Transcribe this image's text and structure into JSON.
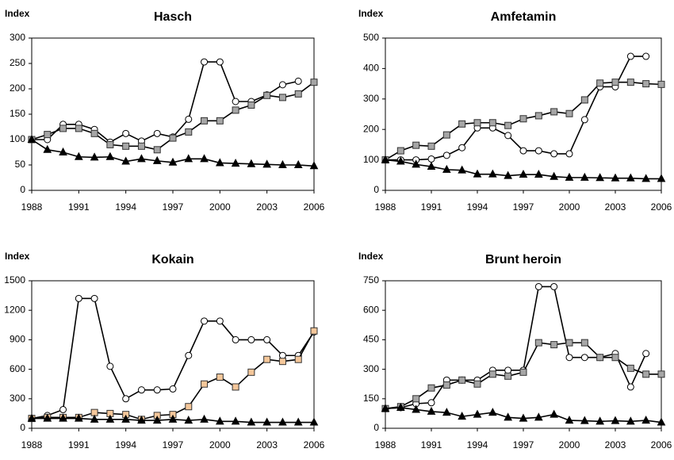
{
  "chart_data": [
    {
      "type": "line",
      "title": "Hasch",
      "ylabel": "Index",
      "x": [
        1988,
        1989,
        1990,
        1991,
        1992,
        1993,
        1994,
        1995,
        1996,
        1997,
        1998,
        1999,
        2000,
        2001,
        2002,
        2003,
        2004,
        2005,
        2006
      ],
      "xlim": [
        1988,
        2006
      ],
      "xticks": [
        1988,
        1991,
        1994,
        1997,
        2000,
        2003,
        2006
      ],
      "ylim": [
        0,
        300
      ],
      "yticks": [
        0,
        50,
        100,
        150,
        200,
        250,
        300
      ],
      "series": [
        {
          "marker": "circle",
          "color": "#ffffff",
          "values": [
            100,
            100,
            130,
            130,
            120,
            95,
            112,
            97,
            112,
            105,
            140,
            253,
            253,
            175,
            175,
            188,
            208,
            215,
            null
          ]
        },
        {
          "marker": "square",
          "color": "#a6a6a6",
          "values": [
            100,
            110,
            122,
            122,
            112,
            90,
            87,
            87,
            80,
            103,
            115,
            137,
            137,
            158,
            168,
            187,
            183,
            190,
            213
          ]
        },
        {
          "marker": "triangle",
          "color": "#000000",
          "values": [
            100,
            80,
            75,
            66,
            65,
            66,
            57,
            62,
            58,
            55,
            62,
            62,
            54,
            53,
            52,
            51,
            50,
            50,
            48
          ]
        }
      ]
    },
    {
      "type": "line",
      "title": "Amfetamin",
      "ylabel": "Index",
      "x": [
        1988,
        1989,
        1990,
        1991,
        1992,
        1993,
        1994,
        1995,
        1996,
        1997,
        1998,
        1999,
        2000,
        2001,
        2002,
        2003,
        2004,
        2005,
        2006
      ],
      "xlim": [
        1988,
        2006
      ],
      "xticks": [
        1988,
        1991,
        1994,
        1997,
        2000,
        2003,
        2006
      ],
      "ylim": [
        0,
        500
      ],
      "yticks": [
        0,
        100,
        200,
        300,
        400,
        500
      ],
      "series": [
        {
          "marker": "circle",
          "color": "#ffffff",
          "values": [
            100,
            100,
            100,
            103,
            115,
            140,
            205,
            205,
            180,
            130,
            130,
            120,
            120,
            232,
            340,
            340,
            440,
            440,
            null
          ]
        },
        {
          "marker": "square",
          "color": "#a6a6a6",
          "values": [
            100,
            130,
            148,
            145,
            182,
            218,
            222,
            222,
            213,
            235,
            245,
            258,
            252,
            297,
            352,
            355,
            355,
            350,
            348
          ]
        },
        {
          "marker": "triangle",
          "color": "#000000",
          "values": [
            100,
            95,
            85,
            78,
            68,
            66,
            53,
            53,
            48,
            52,
            52,
            45,
            42,
            42,
            41,
            40,
            40,
            38,
            38
          ]
        }
      ]
    },
    {
      "type": "line",
      "title": "Kokain",
      "ylabel": "Index",
      "x": [
        1988,
        1989,
        1990,
        1991,
        1992,
        1993,
        1994,
        1995,
        1996,
        1997,
        1998,
        1999,
        2000,
        2001,
        2002,
        2003,
        2004,
        2005,
        2006
      ],
      "xlim": [
        1988,
        2006
      ],
      "xticks": [
        1988,
        1991,
        1994,
        1997,
        2000,
        2003,
        2006
      ],
      "ylim": [
        0,
        1500
      ],
      "yticks": [
        0,
        300,
        600,
        900,
        1200,
        1500
      ],
      "series": [
        {
          "marker": "circle",
          "color": "#ffffff",
          "values": [
            100,
            130,
            190,
            1320,
            1320,
            630,
            300,
            390,
            390,
            400,
            740,
            1090,
            1090,
            900,
            900,
            900,
            740,
            740,
            980
          ]
        },
        {
          "marker": "square",
          "color": "#f5c79a",
          "values": [
            100,
            110,
            110,
            110,
            160,
            150,
            140,
            90,
            130,
            140,
            220,
            450,
            520,
            420,
            570,
            700,
            680,
            700,
            990
          ]
        },
        {
          "marker": "triangle",
          "color": "#000000",
          "values": [
            100,
            100,
            100,
            100,
            90,
            90,
            90,
            80,
            80,
            90,
            80,
            90,
            70,
            70,
            60,
            60,
            60,
            60,
            60
          ]
        }
      ]
    },
    {
      "type": "line",
      "title": "Brunt heroin",
      "ylabel": "Index",
      "x": [
        1988,
        1989,
        1990,
        1991,
        1992,
        1993,
        1994,
        1995,
        1996,
        1997,
        1998,
        1999,
        2000,
        2001,
        2002,
        2003,
        2004,
        2005,
        2006
      ],
      "xlim": [
        1988,
        2006
      ],
      "xticks": [
        1988,
        1991,
        1994,
        1997,
        2000,
        2003,
        2006
      ],
      "ylim": [
        0,
        750
      ],
      "yticks": [
        0,
        150,
        300,
        450,
        600,
        750
      ],
      "series": [
        {
          "marker": "circle",
          "color": "#ffffff",
          "values": [
            100,
            105,
            125,
            130,
            245,
            245,
            245,
            295,
            295,
            295,
            720,
            720,
            360,
            360,
            360,
            380,
            210,
            380,
            null
          ]
        },
        {
          "marker": "square",
          "color": "#a6a6a6",
          "values": [
            100,
            110,
            150,
            205,
            220,
            245,
            225,
            275,
            265,
            285,
            435,
            425,
            435,
            435,
            360,
            360,
            305,
            275,
            275
          ]
        },
        {
          "marker": "triangle",
          "color": "#000000",
          "values": [
            100,
            105,
            95,
            85,
            80,
            60,
            70,
            80,
            55,
            50,
            55,
            70,
            40,
            38,
            35,
            38,
            35,
            40,
            30
          ]
        }
      ]
    }
  ]
}
